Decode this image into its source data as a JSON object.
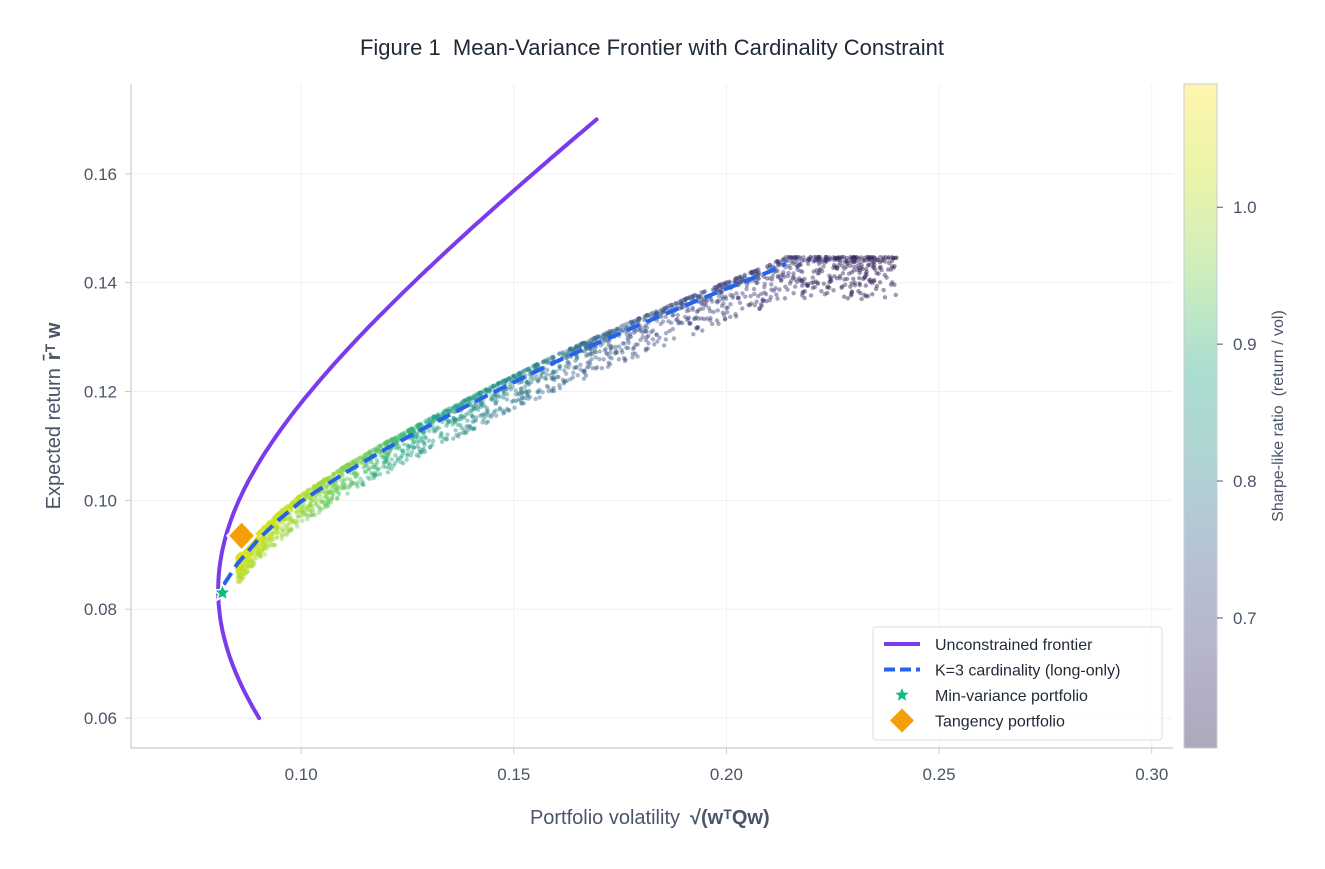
{
  "chart_data": {
    "type": "scatter",
    "title": "Figure 1  Mean-Variance Frontier with Cardinality Constraint",
    "xlabel": "Portfolio volatility",
    "xlabel_math": "√(wᵀQw)",
    "ylabel": "Expected return",
    "ylabel_math": "r̄ᵀ w",
    "xlim": [
      0.06,
      0.305
    ],
    "ylim": [
      0.0545,
      0.1765
    ],
    "x_ticks": [
      "0.10",
      "0.15",
      "0.20",
      "0.25",
      "0.30"
    ],
    "x_tick_values": [
      0.1,
      0.15,
      0.2,
      0.25,
      0.3
    ],
    "y_ticks": [
      "0.06",
      "0.08",
      "0.10",
      "0.12",
      "0.14",
      "0.16"
    ],
    "y_tick_values": [
      0.06,
      0.08,
      0.1,
      0.12,
      0.14,
      0.16
    ],
    "grid": true,
    "legend_position": "lower-right",
    "colorbar": {
      "title": "Sharpe-like ratio  (return / vol)",
      "range": [
        0.605,
        1.09
      ],
      "ticks": [
        "0.7",
        "0.8",
        "0.9",
        "1.0"
      ],
      "tick_values": [
        0.7,
        0.8,
        0.9,
        1.0
      ],
      "colormap": [
        "#2b1a4e",
        "#3f3c78",
        "#3d5f8e",
        "#2f8a8e",
        "#22a884",
        "#7ad151",
        "#c8e020",
        "#fde725"
      ]
    },
    "series": [
      {
        "name": "Unconstrained frontier",
        "type": "line",
        "color": "#7c3aed",
        "frontier": {
          "sigma_min": 0.0805,
          "r_min": 0.0835,
          "r_range": [
            0.06,
            0.17
          ]
        }
      },
      {
        "name": "K=3 cardinality (long-only)",
        "type": "dashed-line",
        "color": "#2563eb",
        "x": [
          0.0818,
          0.085,
          0.09,
          0.095,
          0.1,
          0.11,
          0.12,
          0.13,
          0.14,
          0.15,
          0.16,
          0.17,
          0.18,
          0.19,
          0.2,
          0.21,
          0.214
        ],
        "y": [
          0.0845,
          0.0883,
          0.0929,
          0.0966,
          0.0998,
          0.1049,
          0.1095,
          0.1137,
          0.1178,
          0.1217,
          0.1255,
          0.129,
          0.1324,
          0.1357,
          0.1389,
          0.142,
          0.1435
        ]
      },
      {
        "name": "Min-variance portfolio",
        "type": "marker",
        "marker": "star",
        "color": "#10b981",
        "x": 0.0815,
        "y": 0.083
      },
      {
        "name": "Tangency portfolio",
        "type": "marker",
        "marker": "diamond",
        "color": "#f59e0b",
        "x": 0.086,
        "y": 0.0935
      },
      {
        "name": "",
        "type": "scatter-cloud",
        "n_points": 2600,
        "x_range": [
          0.085,
          0.24
        ],
        "y_range": [
          0.081,
          0.147
        ]
      }
    ]
  }
}
